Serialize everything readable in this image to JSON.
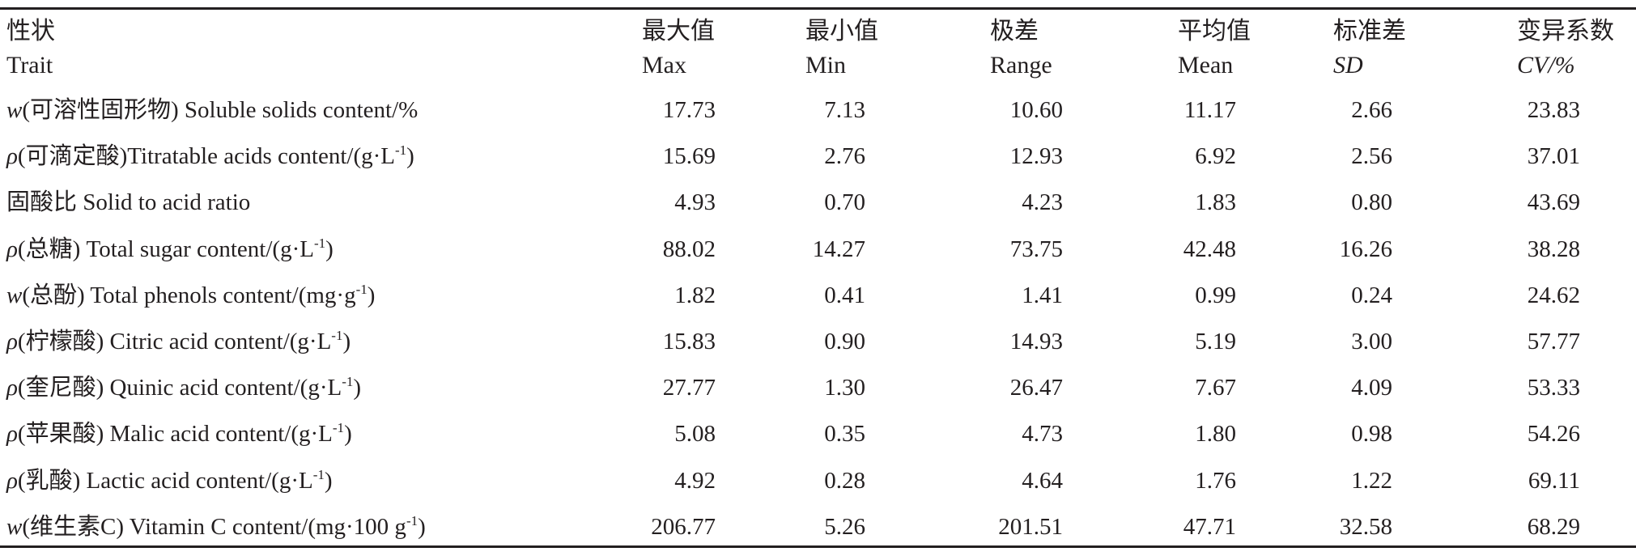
{
  "header": {
    "trait": {
      "zh": "性状",
      "en": "Trait"
    },
    "max": {
      "zh": "最大值",
      "en": "Max"
    },
    "min": {
      "zh": "最小值",
      "en": "Min"
    },
    "range": {
      "zh": "极差",
      "en": "Range"
    },
    "mean": {
      "zh": "平均值",
      "en": "Mean"
    },
    "sd": {
      "zh": "标准差",
      "en": "SD"
    },
    "cv": {
      "zh": "变异系数",
      "en": "CV/%"
    }
  },
  "rows": [
    {
      "sym": "w",
      "zh": "(可溶性固形物)",
      "en": " Soluble solids content/%",
      "unit": "",
      "sup": "",
      "unit_end": "",
      "max": "17.73",
      "min": "7.13",
      "range": "10.60",
      "mean": "11.17",
      "sd": "2.66",
      "cv": "23.83"
    },
    {
      "sym": "ρ",
      "zh": "(可滴定酸)",
      "en": "Titratable acids content/",
      "unit": "(g·L",
      "sup": "-1",
      "unit_end": ")",
      "max": "15.69",
      "min": "2.76",
      "range": "12.93",
      "mean": "6.92",
      "sd": "2.56",
      "cv": "37.01"
    },
    {
      "sym": "",
      "zh": "固酸比",
      "en": " Solid to acid ratio",
      "unit": "",
      "sup": "",
      "unit_end": "",
      "max": "4.93",
      "min": "0.70",
      "range": "4.23",
      "mean": "1.83",
      "sd": "0.80",
      "cv": "43.69"
    },
    {
      "sym": "ρ",
      "zh": "(总糖)",
      "en": " Total sugar content/",
      "unit": "(g·L",
      "sup": "-1",
      "unit_end": ")",
      "max": "88.02",
      "min": "14.27",
      "range": "73.75",
      "mean": "42.48",
      "sd": "16.26",
      "cv": "38.28"
    },
    {
      "sym": "w",
      "zh": "(总酚)",
      "en": " Total phenols content/",
      "unit": "(mg·g",
      "sup": "-1",
      "unit_end": ")",
      "max": "1.82",
      "min": "0.41",
      "range": "1.41",
      "mean": "0.99",
      "sd": "0.24",
      "cv": "24.62"
    },
    {
      "sym": "ρ",
      "zh": "(柠檬酸)",
      "en": " Citric acid content/",
      "unit": "(g·L",
      "sup": "-1",
      "unit_end": ")",
      "max": "15.83",
      "min": "0.90",
      "range": "14.93",
      "mean": "5.19",
      "sd": "3.00",
      "cv": "57.77"
    },
    {
      "sym": "ρ",
      "zh": "(奎尼酸)",
      "en": " Quinic acid content/",
      "unit": "(g·L",
      "sup": "-1",
      "unit_end": ")",
      "max": "27.77",
      "min": "1.30",
      "range": "26.47",
      "mean": "7.67",
      "sd": "4.09",
      "cv": "53.33"
    },
    {
      "sym": "ρ",
      "zh": "(苹果酸)",
      "en": " Malic acid content/",
      "unit": "(g·L",
      "sup": "-1",
      "unit_end": ")",
      "max": "5.08",
      "min": "0.35",
      "range": "4.73",
      "mean": "1.80",
      "sd": "0.98",
      "cv": "54.26"
    },
    {
      "sym": "ρ",
      "zh": "(乳酸)",
      "en": " Lactic acid content/",
      "unit": "(g·L",
      "sup": "-1",
      "unit_end": ")",
      "max": "4.92",
      "min": "0.28",
      "range": "4.64",
      "mean": "1.76",
      "sd": "1.22",
      "cv": "69.11"
    },
    {
      "sym": "w",
      "zh": "(维生素C)",
      "en": " Vitamin C content/",
      "unit": "(mg·100 g",
      "sup": "-1",
      "unit_end": ")",
      "max": "206.77",
      "min": "5.26",
      "range": "201.51",
      "mean": "47.71",
      "sd": "32.58",
      "cv": "68.29"
    }
  ]
}
